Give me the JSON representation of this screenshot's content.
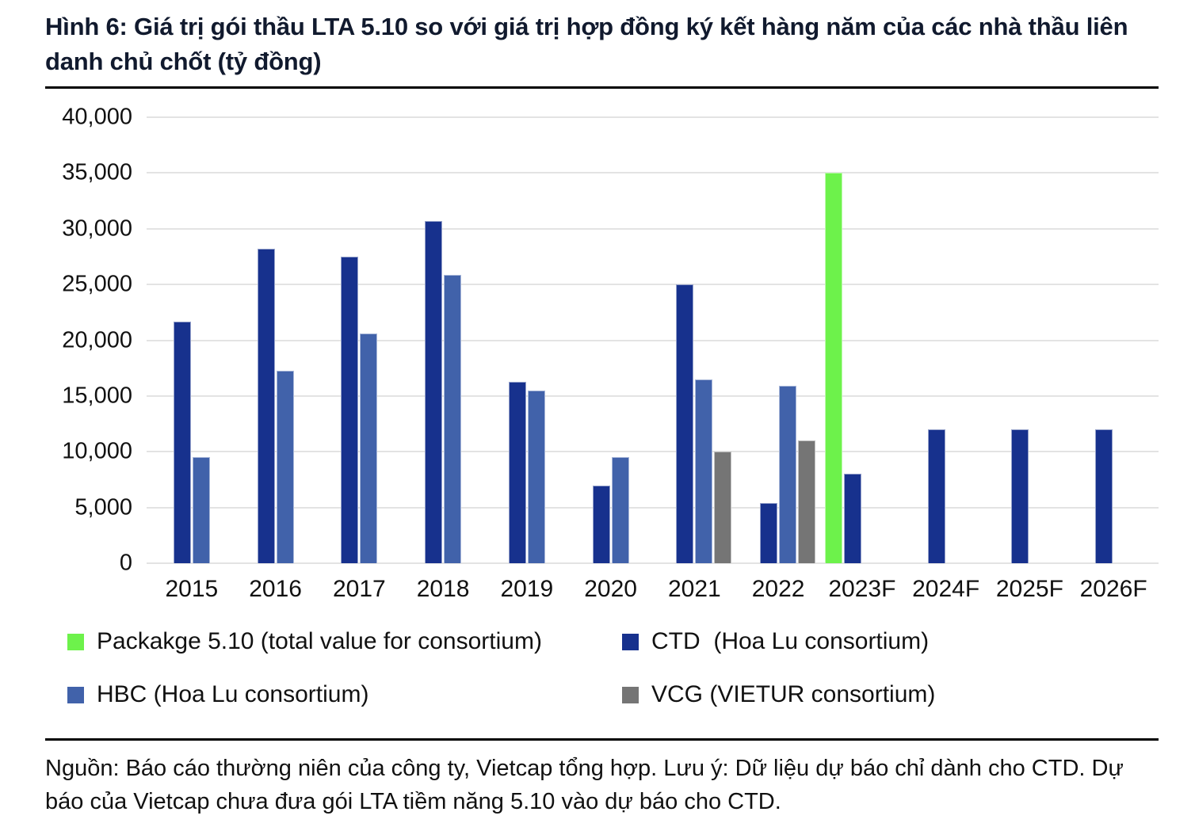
{
  "title": "Hình 6: Giá trị gói thầu LTA 5.10 so với giá trị hợp đồng ký kết hàng năm của các nhà thầu liên danh chủ chốt (tỷ đồng)",
  "source_note": "Nguồn: Báo cáo thường niên của công ty, Vietcap tổng hợp. Lưu ý: Dữ liệu dự báo chỉ dành cho CTD. Dự báo của Vietcap chưa đưa gói LTA tiềm năng 5.10 vào dự báo cho CTD.",
  "colors": {
    "package_green": "#6df24b",
    "ctd_dark_blue": "#17318d",
    "hbc_medium_blue": "#4162aa",
    "vcg_gray": "#757575",
    "gridline": "#e3e3e3",
    "title_text": "#111a2e"
  },
  "chart_data": {
    "type": "bar",
    "title": "Hình 6: Giá trị gói thầu LTA 5.10 so với giá trị hợp đồng ký kết hàng năm của các nhà thầu liên danh chủ chốt (tỷ đồng)",
    "categories": [
      "2015",
      "2016",
      "2017",
      "2018",
      "2019",
      "2020",
      "2021",
      "2022",
      "2023F",
      "2024F",
      "2025F",
      "2026F"
    ],
    "series": [
      {
        "key": "package-510",
        "name": "Packakge 5.10 (total value for consortium)",
        "color": "#6df24b",
        "values": [
          null,
          null,
          null,
          null,
          null,
          null,
          null,
          null,
          35000,
          null,
          null,
          null
        ]
      },
      {
        "key": "ctd",
        "name": "CTD  (Hoa Lu consortium)",
        "color": "#17318d",
        "values": [
          21700,
          28200,
          27500,
          30700,
          16300,
          7000,
          25000,
          5400,
          8000,
          12000,
          12000,
          12000
        ]
      },
      {
        "key": "hbc",
        "name": "HBC (Hoa Lu consortium)",
        "color": "#4162aa",
        "values": [
          9500,
          17300,
          20600,
          25900,
          15500,
          9500,
          16500,
          15900,
          null,
          null,
          null,
          null
        ]
      },
      {
        "key": "vcg",
        "name": "VCG (VIETUR consortium)",
        "color": "#757575",
        "values": [
          null,
          null,
          null,
          null,
          null,
          null,
          10000,
          11000,
          null,
          null,
          null,
          null
        ]
      }
    ],
    "ylim": [
      0,
      40000
    ],
    "ytick_step": 5000,
    "ytick_labels": [
      "40,000",
      "35,000",
      "30,000",
      "25,000",
      "20,000",
      "15,000",
      "10,000",
      "5,000",
      "0"
    ],
    "xlabel": "",
    "ylabel": "",
    "grid": true,
    "legend_position": "bottom",
    "legend_display_order": [
      "package-510",
      "ctd",
      "hbc",
      "vcg"
    ]
  }
}
